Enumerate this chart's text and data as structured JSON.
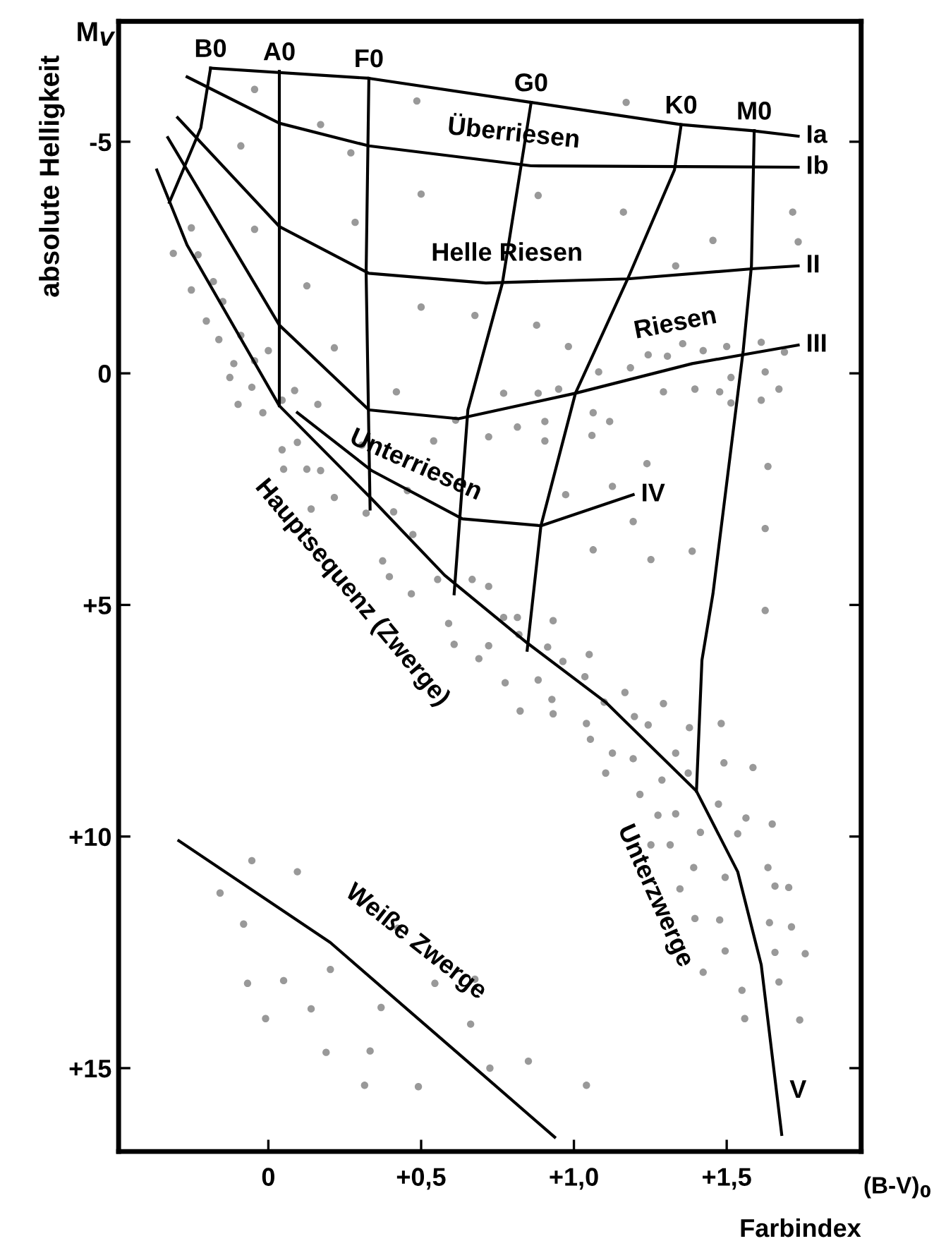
{
  "chart_data": {
    "type": "scatter",
    "xlabel": "Farbindex",
    "ylabel": "absolute Helligkeit",
    "xlim": [
      -0.49,
      1.94
    ],
    "ylim": [
      16.8,
      -7.6
    ],
    "xticks": [
      0,
      {
        "value": 0.5,
        "label": "+0,5"
      },
      {
        "value": 1.0,
        "label": "+1,0"
      },
      {
        "value": 1.5,
        "label": "+1,5"
      }
    ],
    "yticks": [
      {
        "value": -5,
        "label": "-5"
      },
      0,
      {
        "value": 5,
        "label": "+5"
      },
      {
        "value": 10,
        "label": "+10"
      },
      {
        "value": 15,
        "label": "+15"
      }
    ],
    "grid": false,
    "annotations": [
      "M$_{V}$",
      "(B-V)$_{0}$",
      "Überriesen",
      "Helle Riesen",
      "Riesen",
      "Unterriesen",
      "Hauptsequenz (Zwerge)",
      "Unterzwerge",
      "Weiße Zwerge"
    ],
    "series": [
      {
        "type": "scatter",
        "marker": "circle",
        "color": "#999999",
        "x": [
          -0.045,
          0.171,
          -0.09,
          0.27,
          0.486,
          0.5,
          0.284,
          -0.045,
          -0.252,
          -0.311,
          -0.23,
          -0.18,
          -0.252,
          0.126,
          0.5,
          -0.149,
          -0.203,
          -0.09,
          -0.162,
          0.216,
          0.0,
          -0.113,
          -0.045,
          -0.126,
          -0.054,
          0.086,
          0.419,
          -0.099,
          -0.018,
          0.162,
          0.045,
          0.541,
          0.095,
          0.045,
          0.306,
          0.05,
          0.126,
          0.171,
          0.455,
          0.216,
          0.14,
          0.32,
          0.41,
          0.473,
          0.554,
          0.374,
          1.171,
          0.883,
          1.162,
          1.455,
          1.716,
          1.734,
          1.333,
          0.676,
          0.878,
          0.982,
          1.081,
          1.185,
          1.243,
          1.306,
          1.356,
          1.423,
          1.5,
          1.613,
          1.689,
          1.626,
          1.514,
          1.477,
          1.396,
          1.293,
          1.671,
          1.613,
          1.514,
          0.95,
          0.883,
          0.77,
          0.613,
          0.721,
          0.815,
          0.905,
          0.905,
          1.063,
          1.117,
          1.059,
          1.239,
          1.635,
          0.973,
          1.126,
          1.194,
          1.626,
          1.063,
          1.252,
          1.387,
          0.667,
          0.721,
          1.626,
          0.77,
          0.815,
          0.932,
          0.82,
          0.914,
          1.05,
          0.964,
          1.036,
          0.883,
          0.775,
          1.167,
          0.928,
          1.099,
          1.293,
          0.932,
          0.824,
          1.198,
          1.243,
          1.041,
          1.482,
          1.378,
          1.054,
          1.126,
          1.333,
          1.194,
          1.374,
          1.491,
          1.586,
          1.104,
          1.288,
          1.216,
          1.473,
          1.275,
          1.333,
          1.563,
          1.649,
          1.536,
          1.414,
          1.252,
          1.315,
          1.635,
          1.392,
          1.495,
          1.658,
          1.703,
          1.347,
          1.396,
          1.477,
          1.64,
          1.712,
          1.495,
          1.658,
          1.757,
          1.423,
          1.671,
          1.55,
          1.559,
          1.739,
          0.851,
          1.041,
          -0.054,
          0.095,
          -0.158,
          -0.081,
          0.423,
          -0.068,
          0.05,
          0.203,
          0.545,
          0.676,
          0.14,
          -0.009,
          0.369,
          0.662,
          0.189,
          0.333,
          0.725,
          0.315,
          0.491,
          0.396,
          0.468,
          0.59,
          0.608,
          0.689,
          0.721
        ],
        "values": [
          -6.13,
          -5.37,
          -4.91,
          -4.76,
          -5.88,
          -3.87,
          -3.26,
          -3.11,
          -3.14,
          -2.59,
          -2.56,
          -1.98,
          -1.8,
          -1.89,
          -1.43,
          -1.55,
          -1.13,
          -0.82,
          -0.73,
          -0.55,
          -0.49,
          -0.21,
          -0.27,
          0.09,
          0.3,
          0.37,
          0.4,
          0.67,
          0.85,
          0.67,
          0.58,
          1.46,
          1.49,
          1.65,
          1.55,
          2.07,
          2.07,
          2.1,
          2.53,
          2.68,
          2.93,
          3.02,
          2.99,
          3.48,
          4.45,
          4.05,
          -5.85,
          -3.84,
          -3.48,
          -2.87,
          -3.48,
          -2.84,
          -2.32,
          -1.25,
          -1.04,
          -0.58,
          -0.03,
          -0.12,
          -0.4,
          -0.37,
          -0.64,
          -0.49,
          -0.58,
          -0.67,
          -0.46,
          -0.03,
          0.09,
          0.4,
          0.34,
          0.4,
          0.34,
          0.58,
          0.64,
          0.34,
          0.43,
          0.43,
          1.01,
          1.37,
          1.16,
          1.04,
          1.46,
          0.85,
          1.04,
          1.34,
          1.95,
          2.01,
          2.62,
          2.44,
          3.2,
          3.35,
          3.81,
          4.02,
          3.84,
          4.45,
          4.6,
          5.12,
          5.27,
          5.27,
          5.34,
          5.64,
          5.91,
          6.07,
          6.22,
          6.55,
          6.62,
          6.68,
          6.89,
          7.04,
          7.1,
          7.13,
          7.35,
          7.29,
          7.41,
          7.59,
          7.56,
          7.56,
          7.65,
          7.9,
          8.2,
          8.2,
          8.32,
          8.63,
          8.41,
          8.51,
          8.63,
          8.78,
          9.09,
          9.3,
          9.54,
          9.51,
          9.6,
          9.73,
          9.94,
          9.91,
          10.18,
          10.18,
          10.67,
          10.67,
          10.88,
          11.07,
          11.1,
          11.13,
          11.77,
          11.8,
          11.86,
          11.95,
          12.47,
          12.5,
          12.53,
          12.93,
          13.14,
          13.32,
          13.93,
          13.96,
          14.85,
          15.37,
          10.52,
          10.76,
          11.22,
          11.89,
          11.98,
          13.17,
          13.11,
          12.87,
          13.17,
          13.08,
          13.72,
          13.93,
          13.69,
          14.05,
          14.66,
          14.63,
          15.0,
          15.37,
          15.4,
          4.39,
          4.76,
          5.4,
          5.85,
          6.16,
          5.88
        ]
      },
      {
        "type": "line",
        "name": "Ia",
        "color": "#000000",
        "x": [
          -0.189,
          0.329,
          0.86,
          1.351,
          1.581,
          1.734
        ],
        "values": [
          -6.59,
          -6.37,
          -5.85,
          -5.37,
          -5.24,
          -5.12
        ]
      },
      {
        "type": "line",
        "name": "Ib",
        "color": "#000000",
        "x": [
          -0.266,
          0.036,
          0.329,
          0.86,
          1.734
        ],
        "values": [
          -6.4,
          -5.4,
          -4.91,
          -4.48,
          -4.45
        ]
      },
      {
        "type": "line",
        "name": "II",
        "color": "#000000",
        "x": [
          -0.297,
          0.036,
          0.329,
          0.712,
          1.176,
          1.59,
          1.734
        ],
        "values": [
          -5.52,
          -3.17,
          -2.16,
          -1.95,
          -2.04,
          -2.26,
          -2.32
        ]
      },
      {
        "type": "line",
        "name": "III",
        "color": "#000000",
        "x": [
          -0.329,
          0.036,
          0.329,
          0.622,
          1.005,
          1.387,
          1.734
        ],
        "values": [
          -5.09,
          -1.04,
          0.79,
          0.98,
          0.43,
          -0.21,
          -0.61
        ]
      },
      {
        "type": "line",
        "name": "IV",
        "color": "#000000",
        "x": [
          0.095,
          0.338,
          0.635,
          0.892,
          1.194
        ],
        "values": [
          0.85,
          2.1,
          3.14,
          3.29,
          2.62
        ]
      },
      {
        "type": "line",
        "name": "V",
        "color": "#000000",
        "x": [
          -0.365,
          -0.266,
          0.036,
          0.338,
          0.577,
          0.847,
          1.104,
          1.401,
          1.536,
          1.613,
          1.68
        ],
        "values": [
          -4.39,
          -2.77,
          0.7,
          2.71,
          4.36,
          5.82,
          7.1,
          9.02,
          10.76,
          12.77,
          16.43
        ]
      },
      {
        "type": "line",
        "color": "#000000",
        "x": [
          -0.293,
          0.203,
          0.698,
          0.937
        ],
        "values": [
          10.09,
          12.29,
          15.12,
          16.49
        ]
      },
      {
        "type": "line",
        "name": "B0",
        "color": "#000000",
        "x": [
          -0.189,
          -0.221,
          -0.279,
          -0.324
        ],
        "values": [
          -6.59,
          -5.3,
          -4.39,
          -3.69
        ]
      },
      {
        "type": "line",
        "name": "A0",
        "color": "#000000",
        "x": [
          0.036,
          0.036
        ],
        "values": [
          -6.52,
          0.7
        ]
      },
      {
        "type": "line",
        "name": "F0",
        "color": "#000000",
        "x": [
          0.329,
          0.32,
          0.333
        ],
        "values": [
          -6.37,
          -2.16,
          2.93
        ]
      },
      {
        "type": "line",
        "name": "G0",
        "color": "#000000",
        "x": [
          0.86,
          0.766,
          0.653,
          0.608
        ],
        "values": [
          -5.85,
          -1.95,
          0.79,
          4.76
        ]
      },
      {
        "type": "line",
        "name": "K0",
        "color": "#000000",
        "x": [
          1.351,
          1.329,
          1.176,
          1.005,
          0.892,
          0.847
        ],
        "values": [
          -5.37,
          -4.39,
          -2.04,
          0.43,
          3.29,
          5.98
        ]
      },
      {
        "type": "line",
        "name": "M0",
        "color": "#000000",
        "x": [
          1.59,
          1.581,
          1.554,
          1.455,
          1.419,
          1.401
        ],
        "values": [
          -5.24,
          -2.32,
          -0.49,
          4.76,
          6.19,
          9.02
        ]
      }
    ]
  }
}
